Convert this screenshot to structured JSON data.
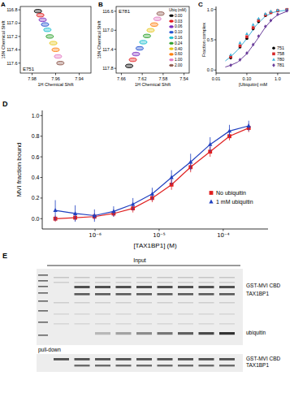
{
  "chart_data": [
    {
      "type": "scatter",
      "title": "A",
      "x_label": "1H Chemical Shift",
      "y_label": "15N Chemical Shift",
      "annotations": [
        "E751"
      ],
      "x": [
        7.975,
        7.973,
        7.971,
        7.969,
        7.967,
        7.965,
        7.962,
        7.96,
        7.958,
        7.956
      ],
      "y": [
        116.82,
        116.88,
        116.95,
        117.02,
        117.1,
        117.2,
        117.3,
        117.4,
        117.5,
        117.6
      ],
      "colors": [
        "#000000",
        "#e31a1c",
        "#7b2cbf",
        "#1f4fd1",
        "#17becf",
        "#2ca02c",
        "#e6c619",
        "#ff7f0e",
        "#e377c2",
        "#8c564b"
      ],
      "xlim": [
        7.99,
        7.93
      ],
      "xticks": [
        7.98,
        7.96,
        7.94
      ],
      "ylim": [
        117.75,
        116.75
      ],
      "yticks": [
        116.8,
        {
          "value": 117,
          "label": "117.0"
        },
        117.2,
        117.4,
        117.6
      ]
    },
    {
      "type": "scatter",
      "title": "B",
      "x_label": "1H Chemical Shift",
      "y_label": "15N Chemical Shift",
      "annotations": [
        "E781",
        "Ubiq (mM)"
      ],
      "legend": "upper right",
      "series": [
        {
          "name": "0.00",
          "color": "#000000",
          "x": [
            7.645
          ],
          "y": [
            117.75
          ]
        },
        {
          "name": "0.03",
          "color": "#e31a1c",
          "x": [
            7.638
          ],
          "y": [
            117.62
          ]
        },
        {
          "name": "0.06",
          "color": "#7b2cbf",
          "x": [
            7.632
          ],
          "y": [
            117.5
          ]
        },
        {
          "name": "0.10",
          "color": "#1f4fd1",
          "x": [
            7.625
          ],
          "y": [
            117.38
          ]
        },
        {
          "name": "0.16",
          "color": "#17becf",
          "x": [
            7.618
          ],
          "y": [
            117.25
          ]
        },
        {
          "name": "0.24",
          "color": "#2ca02c",
          "x": [
            7.611
          ],
          "y": [
            117.12
          ]
        },
        {
          "name": "0.40",
          "color": "#e6c619",
          "x": [
            7.604
          ],
          "y": [
            117.0
          ]
        },
        {
          "name": "0.60",
          "color": "#ff7f0e",
          "x": [
            7.597
          ],
          "y": [
            116.88
          ]
        },
        {
          "name": "1.00",
          "color": "#e377c2",
          "x": [
            7.591
          ],
          "y": [
            116.76
          ]
        },
        {
          "name": "2.00",
          "color": "#8c564b",
          "x": [
            7.585
          ],
          "y": [
            116.65
          ]
        }
      ],
      "xlim": [
        7.67,
        7.53
      ],
      "xticks": [
        7.66,
        7.62,
        7.58,
        7.54
      ],
      "ylim": [
        117.9,
        116.5
      ],
      "yticks": [
        116.6,
        {
          "value": 117,
          "label": "117.0"
        },
        117.4,
        117.8
      ]
    },
    {
      "type": "scatter",
      "title": "C",
      "x_label": "[Ubiquitin] mM",
      "y_label": "Fraction complex",
      "log": "x",
      "legend": "lower right",
      "series": [
        {
          "name": "751",
          "color": "#000000",
          "marker": "circle",
          "x": [
            0.03,
            0.06,
            0.1,
            0.16,
            0.24,
            0.4,
            0.6,
            1.0,
            2.0
          ],
          "values": [
            0.2,
            0.38,
            0.52,
            0.68,
            0.8,
            0.9,
            0.95,
            0.98,
            1.0
          ]
        },
        {
          "name": "758",
          "color": "#d62728",
          "marker": "square",
          "x": [
            0.03,
            0.06,
            0.1,
            0.16,
            0.24,
            0.4,
            0.6,
            1.0,
            2.0
          ],
          "values": [
            0.22,
            0.4,
            0.55,
            0.7,
            0.82,
            0.91,
            0.95,
            0.98,
            1.0
          ]
        },
        {
          "name": "780",
          "color": "#3ab0d8",
          "marker": "triangle",
          "x": [
            0.03,
            0.06,
            0.1,
            0.16,
            0.24,
            0.4,
            0.6,
            1.0,
            2.0
          ],
          "values": [
            0.25,
            0.45,
            0.6,
            0.75,
            0.85,
            0.93,
            0.97,
            0.99,
            1.0
          ]
        },
        {
          "name": "781",
          "color": "#6a3d9a",
          "marker": "diamond",
          "x": [
            0.03,
            0.06,
            0.1,
            0.16,
            0.24,
            0.4,
            0.6,
            1.0,
            2.0
          ],
          "values": [
            0.08,
            0.17,
            0.28,
            0.42,
            0.56,
            0.72,
            0.82,
            0.92,
            0.98
          ]
        },
        {
          "type": "line",
          "color": "#3ab0d8",
          "line_style": "solid",
          "x": [
            0.02,
            0.03,
            0.05,
            0.1,
            0.2,
            0.4,
            0.7,
            1.0,
            2.0
          ],
          "values": [
            0.15,
            0.22,
            0.33,
            0.52,
            0.74,
            0.89,
            0.95,
            0.97,
            0.99
          ]
        },
        {
          "type": "line",
          "color": "#6a3d9a",
          "line_style": "solid",
          "x": [
            0.02,
            0.03,
            0.05,
            0.1,
            0.2,
            0.4,
            0.7,
            1.0,
            2.0
          ],
          "values": [
            0.05,
            0.08,
            0.13,
            0.27,
            0.48,
            0.71,
            0.85,
            0.91,
            0.97
          ]
        }
      ],
      "xlim": [
        0.01,
        2.5
      ],
      "xticks": [
        0.01,
        {
          "value": 0.1,
          "label": "0.10"
        },
        {
          "value": 1,
          "label": "1.0"
        }
      ],
      "ylim": [
        -0.05,
        1.05
      ],
      "yticks": [
        {
          "value": 0,
          "label": "0.0"
        },
        0.5,
        {
          "value": 1,
          "label": "1.0"
        }
      ]
    },
    {
      "type": "line",
      "title": "D",
      "x_label": "[TAX1BP1] (M)",
      "y_label": "MVI fraction bound",
      "log": "x",
      "legend": "lower right",
      "x": [
        2.4e-07,
        4.9e-07,
        9.8e-07,
        1.95e-06,
        3.9e-06,
        7.8e-06,
        1.56e-05,
        3.1e-05,
        6.25e-05,
        0.000125,
        0.00025
      ],
      "series": [
        {
          "name": "No ubiquitin",
          "color": "#e02020",
          "marker": "square",
          "line_style": "solid",
          "values": [
            0.0,
            0.01,
            0.02,
            0.05,
            0.1,
            0.2,
            0.33,
            0.5,
            0.65,
            0.8,
            0.88
          ],
          "errors": [
            0.03,
            0.03,
            0.03,
            0.03,
            0.04,
            0.04,
            0.05,
            0.05,
            0.05,
            0.04,
            0.04
          ]
        },
        {
          "name": "1 mM ubiquitin",
          "color": "#2040c0",
          "marker": "triangle",
          "line_style": "solid",
          "values": [
            0.08,
            0.05,
            0.03,
            0.07,
            0.14,
            0.24,
            0.4,
            0.55,
            0.72,
            0.85,
            0.9
          ],
          "errors": [
            0.1,
            0.08,
            0.06,
            0.05,
            0.06,
            0.06,
            0.07,
            0.08,
            0.07,
            0.06,
            0.05
          ]
        }
      ],
      "xlim": [
        1.5e-07,
        0.0005
      ],
      "xticks": [
        {
          "value": 1e-06,
          "label": "10⁻⁶"
        },
        {
          "value": 1e-05,
          "label": "10⁻⁵"
        },
        {
          "value": 0.0001,
          "label": "10⁻⁴"
        }
      ],
      "ylim": [
        -0.1,
        1.05
      ],
      "yticks": [
        {
          "value": 0,
          "label": "0.0"
        },
        0.2,
        0.4,
        0.6,
        0.8,
        {
          "value": 1,
          "label": "1.0"
        }
      ]
    }
  ],
  "gel": {
    "title": "E",
    "input_label": "Input",
    "pulldown_label": "pull-down",
    "input_bands": [
      "GST-MVI CBD",
      "TAX1BP1",
      "ubiquitin"
    ],
    "pulldown_bands": [
      "GST-MVI CBD",
      "TAX1BP1"
    ]
  }
}
